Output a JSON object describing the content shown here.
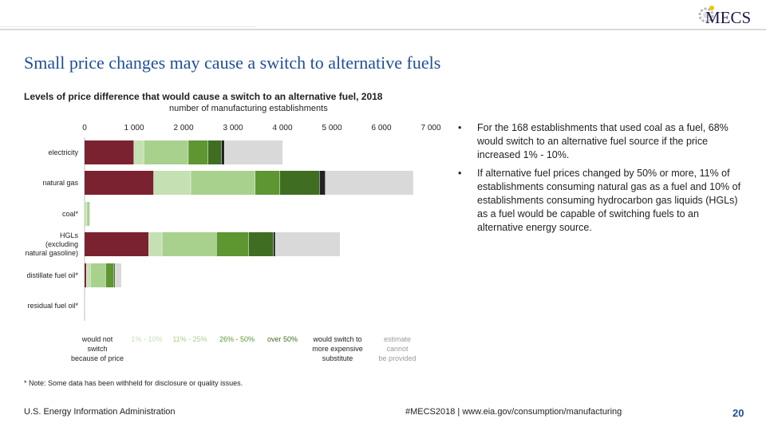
{
  "header": {
    "logo_text": "MECS"
  },
  "slide_title": "Small price changes may cause a switch to alternative fuels",
  "chart_data": {
    "type": "bar",
    "orientation": "horizontal",
    "stacked": true,
    "title": "Levels of price difference that would cause a switch to an alternative fuel, 2018",
    "subtitle": "number of manufacturing establishments",
    "xlim": [
      0,
      7000
    ],
    "x_ticks": [
      "0",
      "1 000",
      "2 000",
      "3 000",
      "4 000",
      "5 000",
      "6 000",
      "7 000"
    ],
    "categories": [
      "electricity",
      "natural gas",
      "coal*",
      "HGLs (excluding natural gasoline)",
      "distillate fuel oil*",
      "residual fuel oil*"
    ],
    "series": [
      {
        "name": "would not switch because of price",
        "color": "#7b2230",
        "values": [
          1000,
          1400,
          0,
          1300,
          40,
          0
        ]
      },
      {
        "name": "1% - 10%",
        "color": "#c5e0b3",
        "values": [
          200,
          750,
          50,
          270,
          80,
          0
        ]
      },
      {
        "name": "11% - 25%",
        "color": "#a9d18e",
        "values": [
          900,
          1300,
          60,
          1100,
          310,
          0
        ]
      },
      {
        "name": "26% - 50%",
        "color": "#5e9632",
        "values": [
          400,
          500,
          0,
          650,
          160,
          0
        ]
      },
      {
        "name": "over 50%",
        "color": "#3f6e22",
        "values": [
          270,
          800,
          0,
          500,
          30,
          0
        ]
      },
      {
        "name": "would switch to more expensive substitute",
        "color": "#222222",
        "values": [
          60,
          120,
          0,
          40,
          10,
          0
        ]
      },
      {
        "name": "estimate cannot be provided",
        "color": "#d9d9d9",
        "values": [
          1180,
          1780,
          0,
          1310,
          120,
          10
        ]
      }
    ],
    "legend_position": "bottom",
    "grid": false
  },
  "bullets": [
    "For the 168 establishments that used coal as a fuel, 68% would switch to an alternative fuel source if the price increased 1% - 10%.",
    "If alternative fuel prices changed by 50% or more, 11% of establishments consuming natural gas as a fuel and 10% of establishments consuming hydrocarbon gas liquids (HGLs) as a fuel would be capable of switching fuels to an alternative energy source."
  ],
  "bullet_marker": "•",
  "note": "* Note: Some data has been withheld for disclosure or quality issues.",
  "footer": {
    "left": "U.S. Energy Information Administration",
    "center": "#MECS2018 | www.eia.gov/consumption/manufacturing",
    "page_number": "20"
  }
}
